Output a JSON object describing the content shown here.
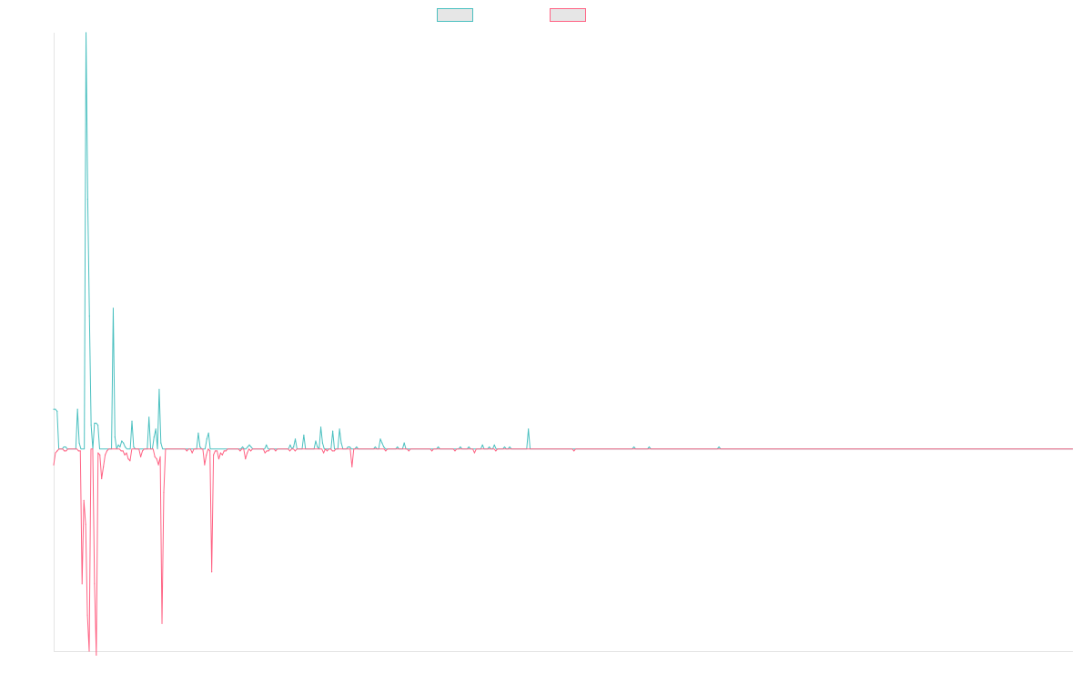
{
  "chart_data": {
    "type": "line",
    "title": "",
    "xlabel": "",
    "ylabel": "",
    "grid": false,
    "legend_position": "top-center",
    "series": [
      {
        "name": "",
        "color": "#4bc0c0",
        "values": [
          20,
          20,
          19,
          0,
          0,
          0,
          1,
          1,
          0,
          0,
          0,
          0,
          0,
          0,
          20,
          3,
          0,
          0,
          0,
          210,
          126,
          67,
          12,
          0,
          13,
          13,
          12,
          0,
          0,
          0,
          0,
          0,
          0,
          0,
          0,
          71,
          6,
          0,
          2,
          1,
          4,
          3,
          1,
          0,
          0,
          0,
          14,
          1,
          0,
          0,
          0,
          0,
          0,
          0,
          0,
          0,
          16,
          0,
          0,
          6,
          10,
          0,
          30,
          3,
          0,
          0,
          0,
          0,
          0,
          0,
          0,
          0,
          0,
          0,
          0,
          0,
          0,
          0,
          0,
          0,
          0,
          0,
          0,
          0,
          0,
          8,
          1,
          0,
          0,
          0,
          5,
          8,
          0,
          0,
          0,
          0,
          0,
          0,
          0,
          0,
          0,
          0,
          0,
          0,
          0,
          0,
          0,
          0,
          0,
          0,
          0,
          1,
          0,
          0,
          1,
          2,
          1,
          0,
          0,
          0,
          0,
          0,
          0,
          0,
          0,
          2,
          0,
          0,
          0,
          0,
          0,
          0,
          0,
          0,
          0,
          0,
          0,
          0,
          0,
          2,
          0,
          1,
          5,
          0,
          0,
          0,
          0,
          7,
          0,
          0,
          0,
          0,
          0,
          0,
          4,
          1,
          0,
          11,
          3,
          0,
          0,
          0,
          0,
          0,
          9,
          0,
          0,
          0,
          10,
          3,
          0,
          0,
          0,
          1,
          1,
          0,
          0,
          0,
          1,
          0,
          0,
          0,
          0,
          0,
          0,
          0,
          0,
          0,
          0,
          1,
          0,
          0,
          5,
          3,
          1,
          0,
          0,
          0,
          0,
          0,
          0,
          0,
          1,
          0,
          0,
          0,
          3,
          0,
          0,
          0,
          0,
          0,
          0,
          0,
          0,
          0,
          0,
          0,
          0,
          0,
          0,
          0,
          0,
          0,
          0,
          0,
          1,
          0,
          0,
          0,
          0,
          0,
          0,
          0,
          0,
          0,
          0,
          0,
          0,
          1,
          0,
          0,
          0,
          0,
          1,
          0,
          0,
          0,
          0,
          0,
          0,
          0,
          2,
          0,
          0,
          0,
          1,
          0,
          0,
          2,
          0,
          0,
          0,
          0,
          0,
          1,
          0,
          0,
          1,
          0,
          0,
          0,
          0,
          0,
          0,
          0,
          0,
          0,
          0,
          10,
          0,
          0,
          0,
          0,
          0,
          0,
          0,
          0,
          0,
          0,
          0,
          0,
          0,
          0,
          0,
          0,
          0,
          0,
          0,
          0,
          0,
          0,
          0,
          0,
          0,
          0,
          0,
          0,
          0,
          0,
          0,
          0,
          0,
          0,
          0,
          0,
          0,
          0,
          0,
          0,
          0,
          0,
          0,
          0,
          0,
          0,
          0,
          0,
          0,
          0,
          0,
          0,
          0,
          0,
          0,
          0,
          0,
          0,
          0,
          0,
          0,
          1,
          0,
          0,
          0,
          0,
          0,
          0,
          0,
          0,
          1,
          0,
          0,
          0,
          0,
          0,
          0,
          0,
          0,
          0,
          0,
          0,
          0,
          0,
          0,
          0,
          0,
          0,
          0,
          0,
          0,
          0,
          0,
          0,
          0,
          0,
          0,
          0,
          0,
          0,
          0,
          0,
          0,
          0,
          0,
          0,
          0,
          0,
          0,
          0,
          0,
          1,
          0,
          0,
          0,
          0,
          0,
          0,
          0,
          0,
          0,
          0,
          0,
          0,
          0,
          0,
          0,
          0,
          0,
          0,
          0,
          0,
          0,
          0,
          0,
          0,
          0,
          0,
          0,
          0,
          0,
          0,
          0,
          0,
          0,
          0,
          0,
          0,
          0,
          0,
          0,
          0,
          0,
          0,
          0,
          0,
          0,
          0,
          0,
          0,
          0,
          0,
          0,
          0,
          0,
          0,
          0,
          0,
          0,
          0,
          0,
          0,
          0,
          0,
          0,
          0,
          0,
          0,
          0,
          0,
          0,
          0,
          0,
          0,
          0,
          0,
          0,
          0,
          0,
          0,
          0,
          0,
          0,
          0,
          0,
          0,
          0,
          0,
          0,
          0,
          0,
          0,
          0,
          0,
          0,
          0,
          0,
          0,
          0,
          0,
          0,
          0,
          0,
          0,
          0,
          0,
          0,
          0,
          0,
          0,
          0,
          0,
          0,
          0,
          0,
          0,
          0,
          0,
          0,
          0,
          0,
          0,
          0,
          0,
          0,
          0,
          0,
          0,
          0,
          0,
          0,
          0,
          0,
          0,
          0,
          0,
          0,
          0,
          0,
          0,
          0,
          0,
          0,
          0,
          0,
          0,
          0,
          0,
          0,
          0,
          0,
          0,
          0,
          0,
          0,
          0,
          0,
          0,
          0,
          0,
          0,
          0,
          0,
          0,
          0,
          0,
          0,
          0,
          0,
          0,
          0,
          0,
          0,
          0,
          0,
          0,
          0,
          0,
          0,
          0,
          0,
          0,
          0,
          0,
          0,
          0,
          0,
          0,
          0,
          0,
          0,
          0,
          0,
          0,
          0,
          0,
          0,
          0,
          0,
          0,
          0,
          0,
          0,
          0,
          0,
          0,
          0,
          0,
          0,
          0
        ]
      },
      {
        "name": "",
        "color": "#ff6384",
        "values": [
          -8,
          -2,
          -1,
          0,
          0,
          0,
          -1,
          -1,
          0,
          0,
          0,
          0,
          0,
          0,
          -1,
          -1,
          -68,
          -26,
          -38,
          -84,
          -102,
          0,
          0,
          -68,
          -104,
          -2,
          -3,
          -15,
          -9,
          -3,
          -1,
          0,
          0,
          0,
          0,
          0,
          0,
          0,
          -1,
          -1,
          -3,
          -2,
          -5,
          -6,
          0,
          0,
          0,
          0,
          0,
          -4,
          -1,
          0,
          0,
          0,
          0,
          0,
          0,
          -4,
          -5,
          -8,
          -4,
          -88,
          -22,
          0,
          0,
          0,
          0,
          0,
          0,
          0,
          0,
          0,
          0,
          0,
          0,
          -1,
          0,
          0,
          -2,
          0,
          0,
          0,
          0,
          0,
          0,
          -8,
          -3,
          0,
          -1,
          -62,
          -3,
          -1,
          -1,
          -5,
          -2,
          -3,
          -1,
          -1,
          0,
          0,
          0,
          0,
          0,
          0,
          0,
          -1,
          0,
          0,
          -5,
          -2,
          0,
          -1,
          0,
          0,
          0,
          0,
          0,
          0,
          0,
          -2,
          -1,
          -1,
          0,
          0,
          0,
          -1,
          0,
          0,
          0,
          0,
          0,
          0,
          0,
          -1,
          0,
          0,
          -1,
          0,
          0,
          0,
          0,
          0,
          0,
          0,
          0,
          0,
          0,
          0,
          0,
          0,
          0,
          0,
          -2,
          0,
          -1,
          0,
          0,
          -1,
          -1,
          0,
          0,
          0,
          0,
          0,
          0,
          0,
          0,
          0,
          -9,
          0,
          0,
          0,
          0,
          0,
          0,
          0,
          0,
          0,
          0,
          0,
          0,
          0,
          0,
          0,
          0,
          0,
          0,
          -1,
          0,
          0,
          0,
          0,
          0,
          0,
          0,
          0,
          0,
          0,
          0,
          0,
          -1,
          0,
          0,
          0,
          0,
          0,
          0,
          0,
          0,
          0,
          0,
          0,
          0,
          -1,
          0,
          0,
          0,
          0,
          0,
          0,
          0,
          0,
          0,
          0,
          0,
          0,
          -1,
          0,
          0,
          0,
          0,
          0,
          0,
          0,
          0,
          0,
          0,
          -2,
          0,
          0,
          0,
          0,
          0,
          0,
          0,
          0,
          0,
          0,
          0,
          -1,
          0,
          0,
          0,
          0,
          0,
          0,
          0,
          0,
          0,
          0,
          0,
          0,
          0,
          0,
          0,
          0,
          0,
          0,
          0,
          0,
          0,
          0,
          0,
          0,
          0,
          0,
          0,
          0,
          0,
          0,
          0,
          0,
          0,
          0,
          0,
          0,
          0,
          0,
          0,
          0,
          0,
          0,
          0,
          -1,
          0,
          0,
          0,
          0,
          0,
          0,
          0,
          0,
          0,
          0,
          0,
          0,
          0,
          0,
          0,
          0,
          0,
          0,
          0,
          0,
          0,
          0,
          0,
          0,
          0,
          0,
          0,
          0,
          0,
          0,
          0,
          0,
          0,
          0,
          0,
          0,
          0,
          0,
          0,
          0,
          0,
          0,
          0,
          0,
          0,
          0,
          0,
          0,
          0,
          0,
          0,
          0,
          0,
          0,
          0,
          0,
          0,
          0,
          0,
          0,
          0,
          0,
          0,
          0,
          0,
          0,
          0,
          0,
          0,
          0,
          0,
          0,
          0,
          0,
          0,
          0,
          0,
          0,
          0,
          0,
          0,
          0,
          0,
          0,
          0,
          0,
          0,
          0,
          0,
          0,
          0,
          0,
          0,
          0,
          0,
          0,
          0,
          0,
          0,
          0,
          0,
          0,
          0,
          0,
          0,
          0,
          0,
          0,
          0,
          0,
          0,
          0,
          0,
          0,
          0,
          0,
          0,
          0,
          0,
          0,
          0,
          0,
          0,
          0,
          0,
          0,
          0,
          0,
          0,
          0,
          0,
          0,
          0,
          0,
          0,
          0,
          0,
          0,
          0,
          0,
          0,
          0,
          0,
          0,
          0,
          0,
          0,
          0,
          0,
          0,
          0,
          0,
          0,
          0,
          0,
          0,
          0,
          0,
          0,
          0,
          0,
          0,
          0,
          0,
          0,
          0,
          0,
          0,
          0,
          0,
          0,
          0,
          0,
          0,
          0,
          0,
          0,
          0,
          0,
          0,
          0,
          0,
          0,
          0,
          0,
          0,
          0,
          0,
          0,
          0,
          0,
          0,
          0,
          0,
          0,
          0,
          0,
          0,
          0,
          0,
          0,
          0,
          0,
          0,
          0,
          0,
          0,
          0,
          0,
          0,
          0,
          0,
          0,
          0,
          0,
          0,
          0,
          0,
          0,
          0,
          0,
          0,
          0,
          0,
          0,
          0,
          0,
          0,
          0,
          0,
          0,
          0,
          0,
          0,
          0,
          0,
          0,
          0,
          0,
          0,
          0,
          0,
          0,
          0,
          0,
          0,
          0,
          0,
          0,
          0,
          0,
          0,
          0,
          0,
          0,
          0,
          0,
          0,
          0,
          0,
          0,
          0,
          0,
          0,
          0,
          0,
          0,
          0,
          0,
          0,
          0,
          0,
          0,
          0,
          0,
          0,
          0,
          0,
          0,
          0,
          0
        ]
      }
    ],
    "ylim": [
      -102,
      210
    ]
  }
}
